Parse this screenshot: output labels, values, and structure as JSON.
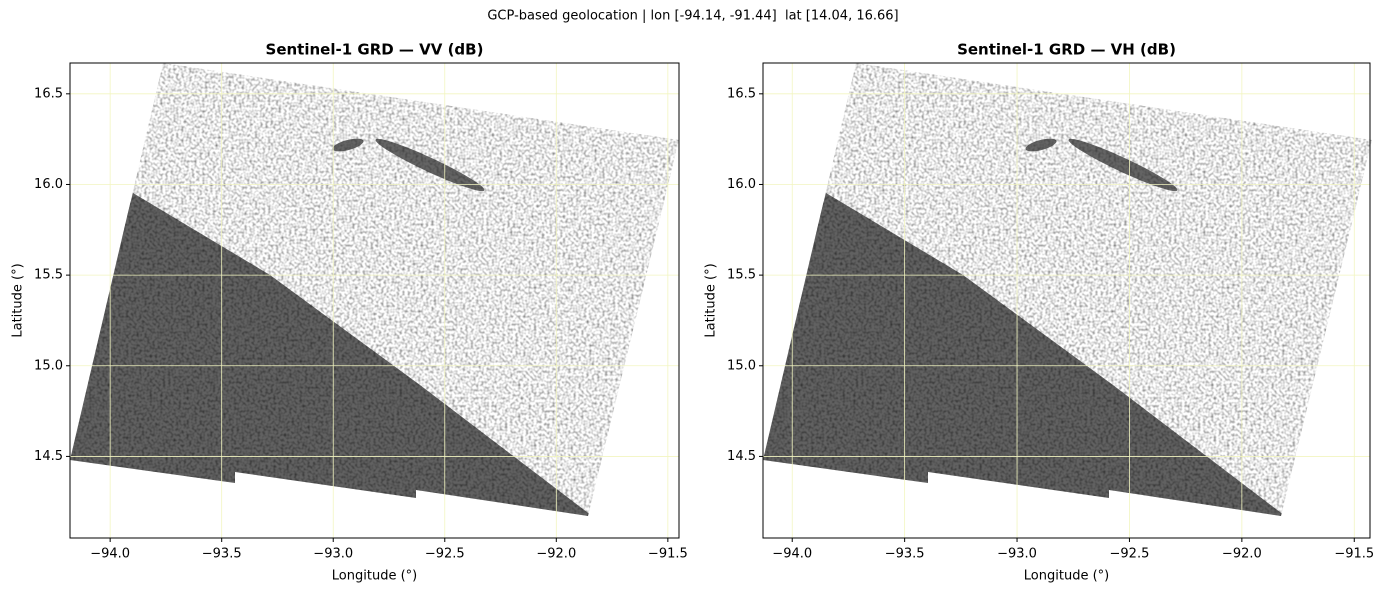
{
  "figure_title": "GCP-based geolocation | lon [-94.14, -91.44]  lat [14.04, 16.66]",
  "chart_data": [
    {
      "type": "image",
      "title": "Sentinel-1 GRD — VV (dB)",
      "xlabel": "Longitude (°)",
      "ylabel": "Latitude (°)",
      "xlim": [
        -94.18,
        -91.45
      ],
      "ylim": [
        14.05,
        16.67
      ],
      "xticks": [
        {
          "value": -94,
          "label": "−94.0"
        },
        {
          "value": -93.5,
          "label": "−93.5"
        },
        {
          "value": -93,
          "label": "−93.0"
        },
        {
          "value": -92.5,
          "label": "−92.5"
        },
        {
          "value": -92,
          "label": "−92.0"
        },
        {
          "value": -91.5,
          "label": "−91.5"
        }
      ],
      "yticks": [
        14.5,
        {
          "value": 15,
          "label": "15.0"
        },
        15.5,
        {
          "value": 16,
          "label": "16.0"
        },
        16.5
      ],
      "grid": true,
      "grid_color": "#f2f5c0"
    },
    {
      "type": "image",
      "title": "Sentinel-1 GRD — VH (dB)",
      "xlabel": "Longitude (°)",
      "ylabel": "Latitude (°)",
      "xlim": [
        -94.13,
        -91.43
      ],
      "ylim": [
        14.05,
        16.67
      ],
      "xticks": [
        {
          "value": -94,
          "label": "−94.0"
        },
        {
          "value": -93.5,
          "label": "−93.5"
        },
        {
          "value": -93,
          "label": "−93.0"
        },
        {
          "value": -92.5,
          "label": "−92.5"
        },
        {
          "value": -92,
          "label": "−92.0"
        },
        {
          "value": -91.5,
          "label": "−91.5"
        }
      ],
      "yticks": [
        14.5,
        {
          "value": 15,
          "label": "15.0"
        },
        15.5,
        {
          "value": 16,
          "label": "16.0"
        },
        16.5
      ],
      "grid": true,
      "grid_color": "#f2f5c0"
    }
  ]
}
